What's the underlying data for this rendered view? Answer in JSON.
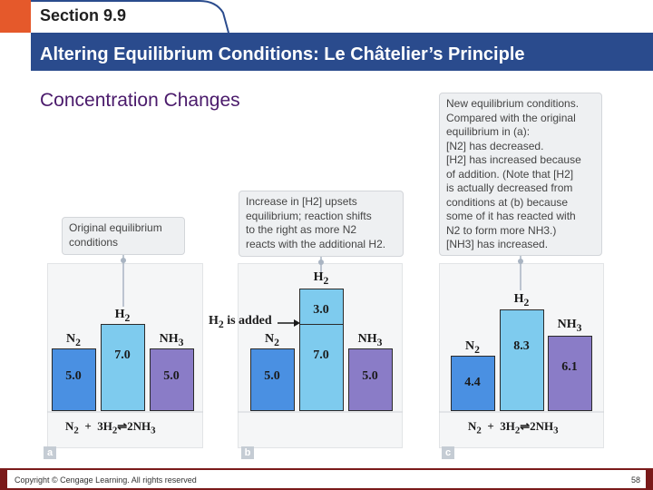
{
  "header": {
    "section": "Section 9.9",
    "title": "Altering Equilibrium Conditions: Le Châtelier’s Principle",
    "subtitle": "Concentration Changes"
  },
  "callouts": {
    "a": [
      "Original equilibrium",
      "conditions"
    ],
    "b": [
      "Increase in [H2] upsets",
      "equilibrium; reaction shifts",
      "to the right as more N2",
      "reacts with the additional H2."
    ],
    "c": [
      "New equilibrium conditions.",
      "Compared with the original",
      "equilibrium in (a):",
      "[N2] has decreased.",
      "[H2] has increased because",
      "of addition. (Note that [H2]",
      "is actually decreased from",
      "conditions at (b) because",
      "some of it has reacted with",
      "N2 to form more NH3.)",
      "[NH3] has increased."
    ]
  },
  "panels": [
    {
      "letter": "a",
      "bars": [
        {
          "species": "N2",
          "value": "5.0",
          "kind": "n2"
        },
        {
          "species": "H2",
          "value": "7.0",
          "kind": "h2"
        },
        {
          "species": "NH3",
          "value": "5.0",
          "kind": "nh3"
        }
      ],
      "equation": "N2  +  3H2 ⇌ 2NH3"
    },
    {
      "letter": "b",
      "bars": [
        {
          "species": "N2",
          "value": "5.0",
          "kind": "n2"
        },
        {
          "species": "H2",
          "value": "7.0",
          "added": "3.0",
          "kind": "h2"
        },
        {
          "species": "NH3",
          "value": "5.0",
          "kind": "nh3"
        }
      ],
      "added_label": "H2 is added",
      "equation": ""
    },
    {
      "letter": "c",
      "bars": [
        {
          "species": "N2",
          "value": "4.4",
          "kind": "n2"
        },
        {
          "species": "H2",
          "value": "8.3",
          "kind": "h2"
        },
        {
          "species": "NH3",
          "value": "6.1",
          "kind": "nh3"
        }
      ],
      "equation": "N2  +  3H2 ⇌ 2NH3"
    }
  ],
  "footer": {
    "copyright": "Copyright © Cengage Learning. All rights reserved",
    "page": "58"
  },
  "colors": {
    "title_bar": "#2a4b8d",
    "accent": "#e5592b",
    "n2": "#4a90e2",
    "h2": "#7ecbee",
    "nh3": "#8a7cc7"
  }
}
